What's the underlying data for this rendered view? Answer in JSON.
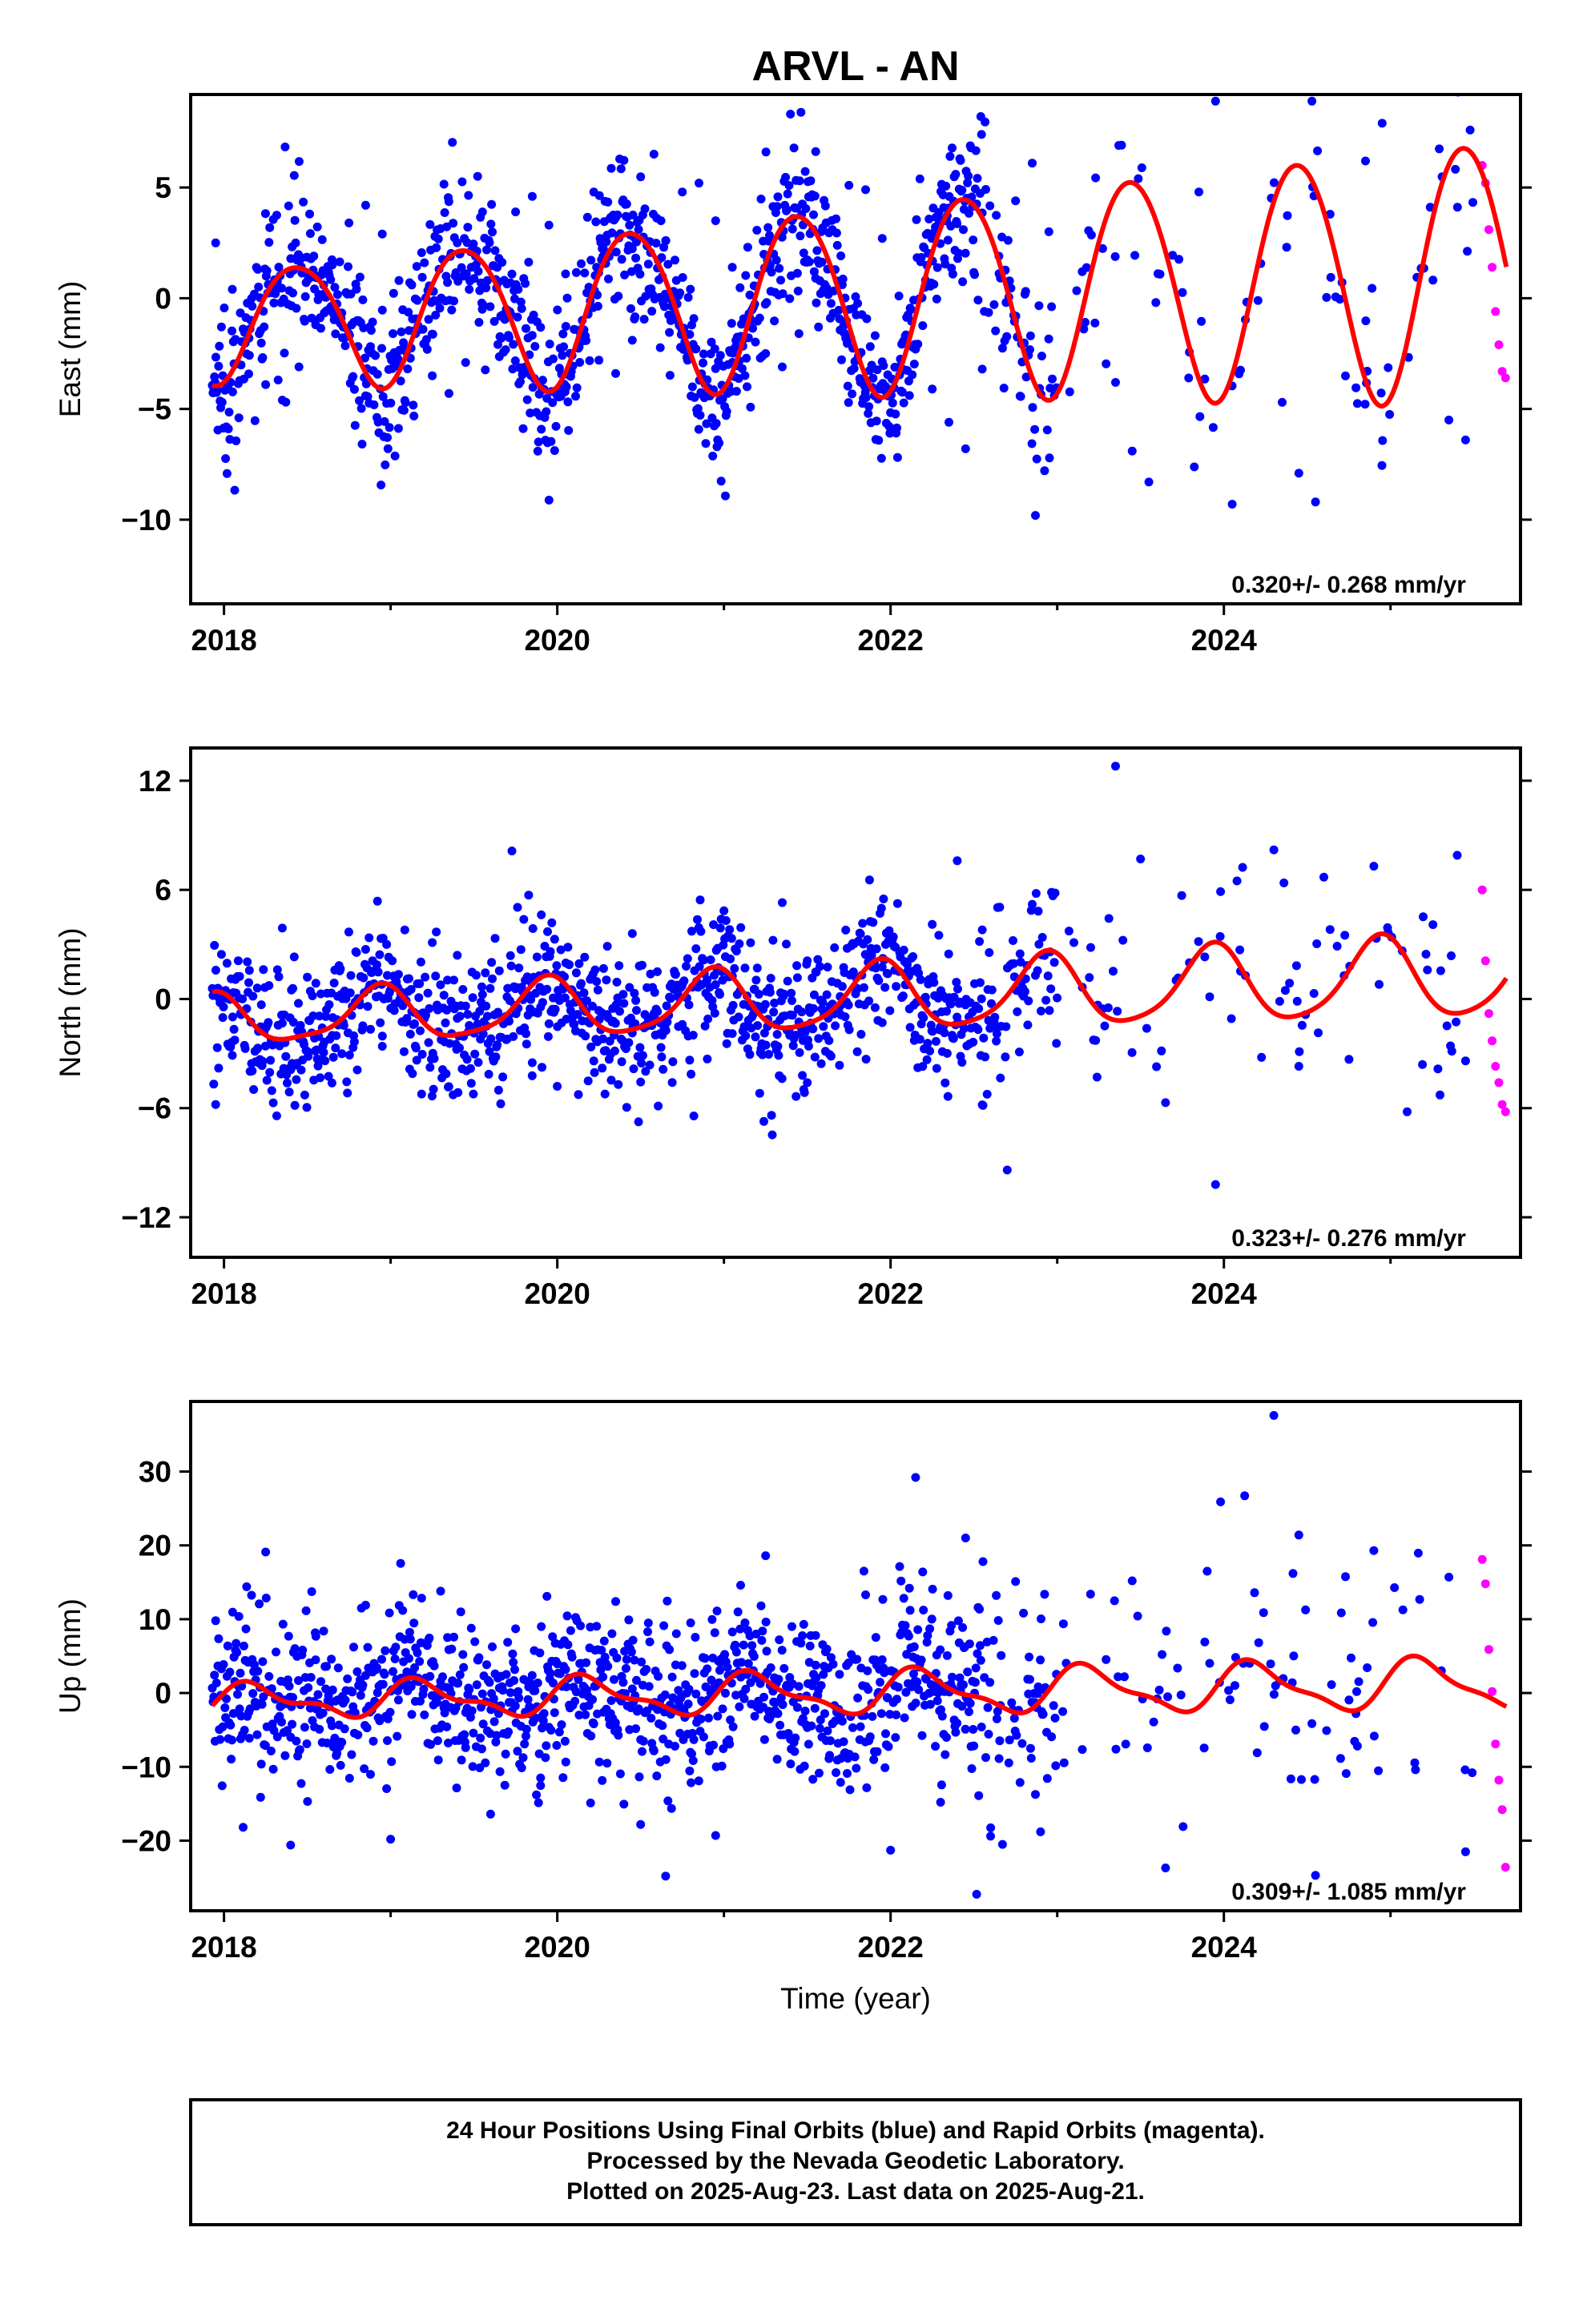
{
  "title": "ARVL - AN",
  "colors": {
    "final": "#0000ff",
    "rapid": "#ff00ff",
    "model": "#ff0000",
    "frame": "#000000"
  },
  "chart_data": [
    {
      "type": "scatter",
      "component": "east",
      "ylabel": "East (mm)",
      "xlabel": "",
      "xlim": [
        2017.8,
        2025.78
      ],
      "ylim": [
        -13.8,
        9.2
      ],
      "yticks": [
        -10,
        -5,
        0,
        5
      ],
      "ytick_labels": [
        "−10",
        "−5",
        "0",
        "5"
      ],
      "xticks": [
        2018,
        2020,
        2022,
        2024
      ],
      "xtick_labels": [
        "2018",
        "2020",
        "2022",
        "2024"
      ],
      "rate_text": "0.320+/- 0.268 mm/yr",
      "model": {
        "rate": 0.32,
        "offset": 0.0,
        "annual_amp": 2.5,
        "annual_growth": 0.18,
        "annual_phase": -1.2,
        "semiannual_amp": 0.3
      },
      "series": [
        {
          "name": "Final Orbits",
          "color": "#0000ff",
          "x": [
            2017.95,
            2018.05,
            2018.15,
            2018.25,
            2018.35,
            2018.45,
            2018.55,
            2018.65,
            2018.75,
            2018.85,
            2018.95,
            2019.05,
            2019.15,
            2019.25,
            2019.35,
            2019.45,
            2019.55,
            2019.65,
            2019.75,
            2019.85,
            2019.95,
            2020.05,
            2020.15,
            2020.25,
            2020.35,
            2020.45,
            2020.55,
            2020.65,
            2020.75,
            2020.85,
            2020.95,
            2021.05,
            2021.15,
            2021.25,
            2021.35,
            2021.45,
            2021.55,
            2021.65,
            2021.75,
            2021.85,
            2021.95,
            2022.05,
            2022.15,
            2022.25,
            2022.35,
            2022.45,
            2022.55,
            2022.65,
            2022.75,
            2022.85,
            2022.95,
            2023.15,
            2023.35,
            2023.45,
            2023.55,
            2023.85,
            2023.95,
            2024.05,
            2024.35,
            2024.45,
            2024.55,
            2024.85,
            2024.95,
            2025.35,
            2025.45
          ],
          "y": [
            2.5,
            0.4,
            -1.8,
            -3.9,
            -4.6,
            -3.1,
            -1.2,
            1.5,
            3.4,
            4.2,
            2.9,
            0.8,
            -1.6,
            -3.5,
            -4.3,
            -2.9,
            -0.5,
            1.8,
            3.9,
            4.6,
            3.3,
            1.1,
            -1.0,
            -2.8,
            -3.4,
            -1.9,
            0.4,
            2.6,
            4.8,
            5.2,
            3.5,
            1.4,
            -0.7,
            -2.5,
            -3.1,
            -1.6,
            0.9,
            3.1,
            5.1,
            4.9,
            2.7,
            0.1,
            -2.3,
            -4.1,
            -5.6,
            -6.8,
            -3.2,
            1.9,
            4.4,
            6.1,
            3.0,
            1.2,
            -3.8,
            -6.9,
            -8.3,
            4.8,
            8.9,
            -9.3,
            -4.7,
            -7.9,
            -9.2,
            6.2,
            7.9,
            -5.5,
            -6.4
          ]
        },
        {
          "name": "Rapid Orbits",
          "color": "#ff00ff",
          "x": [
            2025.55,
            2025.57,
            2025.59,
            2025.61,
            2025.63,
            2025.65,
            2025.67,
            2025.69
          ],
          "y": [
            6.0,
            5.2,
            3.1,
            1.4,
            -0.6,
            -2.1,
            -3.3,
            -3.6
          ]
        }
      ]
    },
    {
      "type": "scatter",
      "component": "north",
      "ylabel": "North (mm)",
      "xlabel": "",
      "xlim": [
        2017.8,
        2025.78
      ],
      "ylim": [
        -14.2,
        13.8
      ],
      "yticks": [
        -12,
        -6,
        0,
        6,
        12
      ],
      "ytick_labels": [
        "−12",
        "−6",
        "0",
        "6",
        "12"
      ],
      "xticks": [
        2018,
        2020,
        2022,
        2024
      ],
      "xtick_labels": [
        "2018",
        "2020",
        "2022",
        "2024"
      ],
      "rate_text": "0.323+/- 0.276 mm/yr",
      "model": {
        "rate": 0.323,
        "offset": 0.0,
        "annual_amp": 1.3,
        "annual_growth": 0.1,
        "annual_phase": 2.0,
        "semiannual_amp": 0.35
      },
      "series": [
        {
          "name": "Final Orbits",
          "color": "#0000ff",
          "x": [
            2017.95,
            2018.05,
            2018.2,
            2018.35,
            2018.5,
            2018.65,
            2018.8,
            2018.95,
            2019.1,
            2019.25,
            2019.4,
            2019.55,
            2019.7,
            2019.85,
            2020.0,
            2020.15,
            2020.3,
            2020.45,
            2020.6,
            2020.75,
            2020.9,
            2021.05,
            2021.2,
            2021.35,
            2021.5,
            2021.65,
            2021.8,
            2021.95,
            2022.1,
            2022.25,
            2022.4,
            2022.55,
            2022.7,
            2022.85,
            2023.1,
            2023.35,
            2023.5,
            2023.65,
            2023.95,
            2023.98,
            2024.3,
            2024.45,
            2024.6,
            2024.9,
            2025.1,
            2025.4,
            2025.45
          ],
          "y": [
            -5.8,
            -3.1,
            0.6,
            3.9,
            1.2,
            -2.0,
            -3.9,
            -2.6,
            1.1,
            3.1,
            2.4,
            -0.3,
            -2.2,
            -3.5,
            -4.8,
            -1.2,
            2.9,
            3.6,
            1.5,
            -1.4,
            -3.3,
            -1.9,
            1.7,
            5.3,
            2.1,
            -0.6,
            -2.9,
            -1.3,
            1.9,
            4.1,
            7.6,
            3.8,
            -9.4,
            5.2,
            3.1,
            12.8,
            7.7,
            -5.7,
            -10.2,
            5.9,
            8.2,
            -3.7,
            6.7,
            7.3,
            -6.2,
            7.9,
            -3.4
          ]
        },
        {
          "name": "Rapid Orbits",
          "color": "#ff00ff",
          "x": [
            2025.55,
            2025.57,
            2025.59,
            2025.61,
            2025.63,
            2025.65,
            2025.67,
            2025.69
          ],
          "y": [
            6.0,
            2.1,
            -0.8,
            -2.3,
            -3.7,
            -4.6,
            -5.8,
            -6.2
          ]
        }
      ]
    },
    {
      "type": "scatter",
      "component": "up",
      "ylabel": "Up (mm)",
      "xlabel": "Time (year)",
      "xlim": [
        2017.8,
        2025.78
      ],
      "ylim": [
        -29.5,
        39.5
      ],
      "yticks": [
        -20,
        -10,
        0,
        10,
        20,
        30
      ],
      "ytick_labels": [
        "−20",
        "−10",
        "0",
        "10",
        "20",
        "30"
      ],
      "xticks": [
        2018,
        2020,
        2022,
        2024
      ],
      "xtick_labels": [
        "2018",
        "2020",
        "2022",
        "2024"
      ],
      "rate_text": "0.309+/- 1.085 mm/yr",
      "model": {
        "rate": 0.309,
        "offset": 0.0,
        "annual_amp": 1.9,
        "annual_growth": 0.1,
        "annual_phase": 0.4,
        "semiannual_amp": 1.0
      },
      "series": [
        {
          "name": "Final Orbits",
          "color": "#0000ff",
          "x": [
            2017.95,
            2018.1,
            2018.25,
            2018.4,
            2018.55,
            2018.7,
            2018.85,
            2019.0,
            2019.15,
            2019.3,
            2019.45,
            2019.6,
            2019.75,
            2019.9,
            2020.05,
            2020.2,
            2020.35,
            2020.5,
            2020.65,
            2020.8,
            2020.95,
            2021.1,
            2021.25,
            2021.4,
            2021.55,
            2021.7,
            2021.85,
            2022.0,
            2022.15,
            2022.3,
            2022.45,
            2022.6,
            2022.75,
            2022.9,
            2023.2,
            2023.45,
            2023.65,
            2023.9,
            2023.98,
            2024.2,
            2024.3,
            2024.45,
            2024.55,
            2024.9,
            2025.15,
            2025.35,
            2025.45
          ],
          "y": [
            9.8,
            -6.2,
            19.1,
            -20.6,
            4.5,
            -9.8,
            11.9,
            -19.8,
            6.1,
            13.8,
            -7.4,
            -16.4,
            8.7,
            -11.5,
            3.2,
            -14.9,
            12.4,
            -17.8,
            -24.8,
            9.5,
            -19.3,
            14.6,
            18.6,
            -9.6,
            7.8,
            -12.1,
            13.3,
            -21.3,
            29.2,
            -14.8,
            21.0,
            -19.4,
            15.1,
            -18.8,
            13.4,
            15.2,
            -23.7,
            16.5,
            25.9,
            -8.1,
            37.6,
            21.4,
            -24.7,
            19.3,
            -10.4,
            15.7,
            -21.5
          ]
        },
        {
          "name": "Rapid Orbits",
          "color": "#ff00ff",
          "x": [
            2025.55,
            2025.57,
            2025.59,
            2025.61,
            2025.63,
            2025.65,
            2025.67,
            2025.69
          ],
          "y": [
            18.1,
            14.8,
            5.9,
            0.2,
            -6.9,
            -11.8,
            -15.8,
            -23.6
          ]
        }
      ]
    }
  ],
  "footer": {
    "line1": "24 Hour Positions Using Final Orbits (blue) and Rapid Orbits (magenta).",
    "line2": "Processed by the Nevada Geodetic Laboratory.",
    "line3": "Plotted on 2025-Aug-23. Last data on 2025-Aug-21."
  }
}
